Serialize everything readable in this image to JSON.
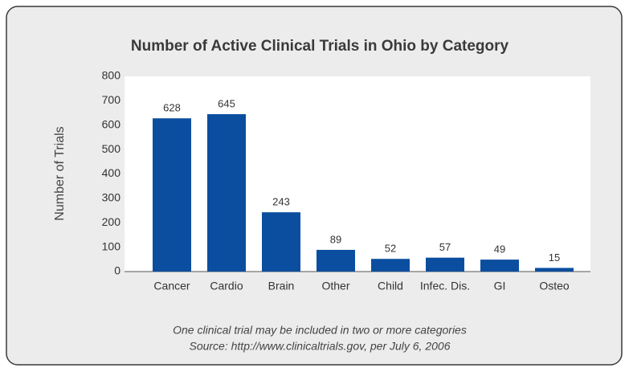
{
  "chart_data": {
    "type": "bar",
    "title": "Number of Active Clinical Trials in Ohio by Category",
    "y_label": "Number of Trials",
    "categories": [
      "Cancer",
      "Cardio",
      "Brain",
      "Other",
      "Child",
      "Infec. Dis.",
      "GI",
      "Osteo"
    ],
    "values": [
      628,
      645,
      243,
      89,
      52,
      57,
      49,
      15
    ],
    "color": "#0b4e9f",
    "ylim": [
      0,
      800
    ],
    "yticks": [
      0,
      100,
      200,
      300,
      400,
      500,
      600,
      700,
      800
    ],
    "grid": false,
    "notes": [
      "One clinical trial may be included in two or more categories",
      "Source: http://www.clinicaltrials.gov, per July 6, 2006"
    ]
  }
}
